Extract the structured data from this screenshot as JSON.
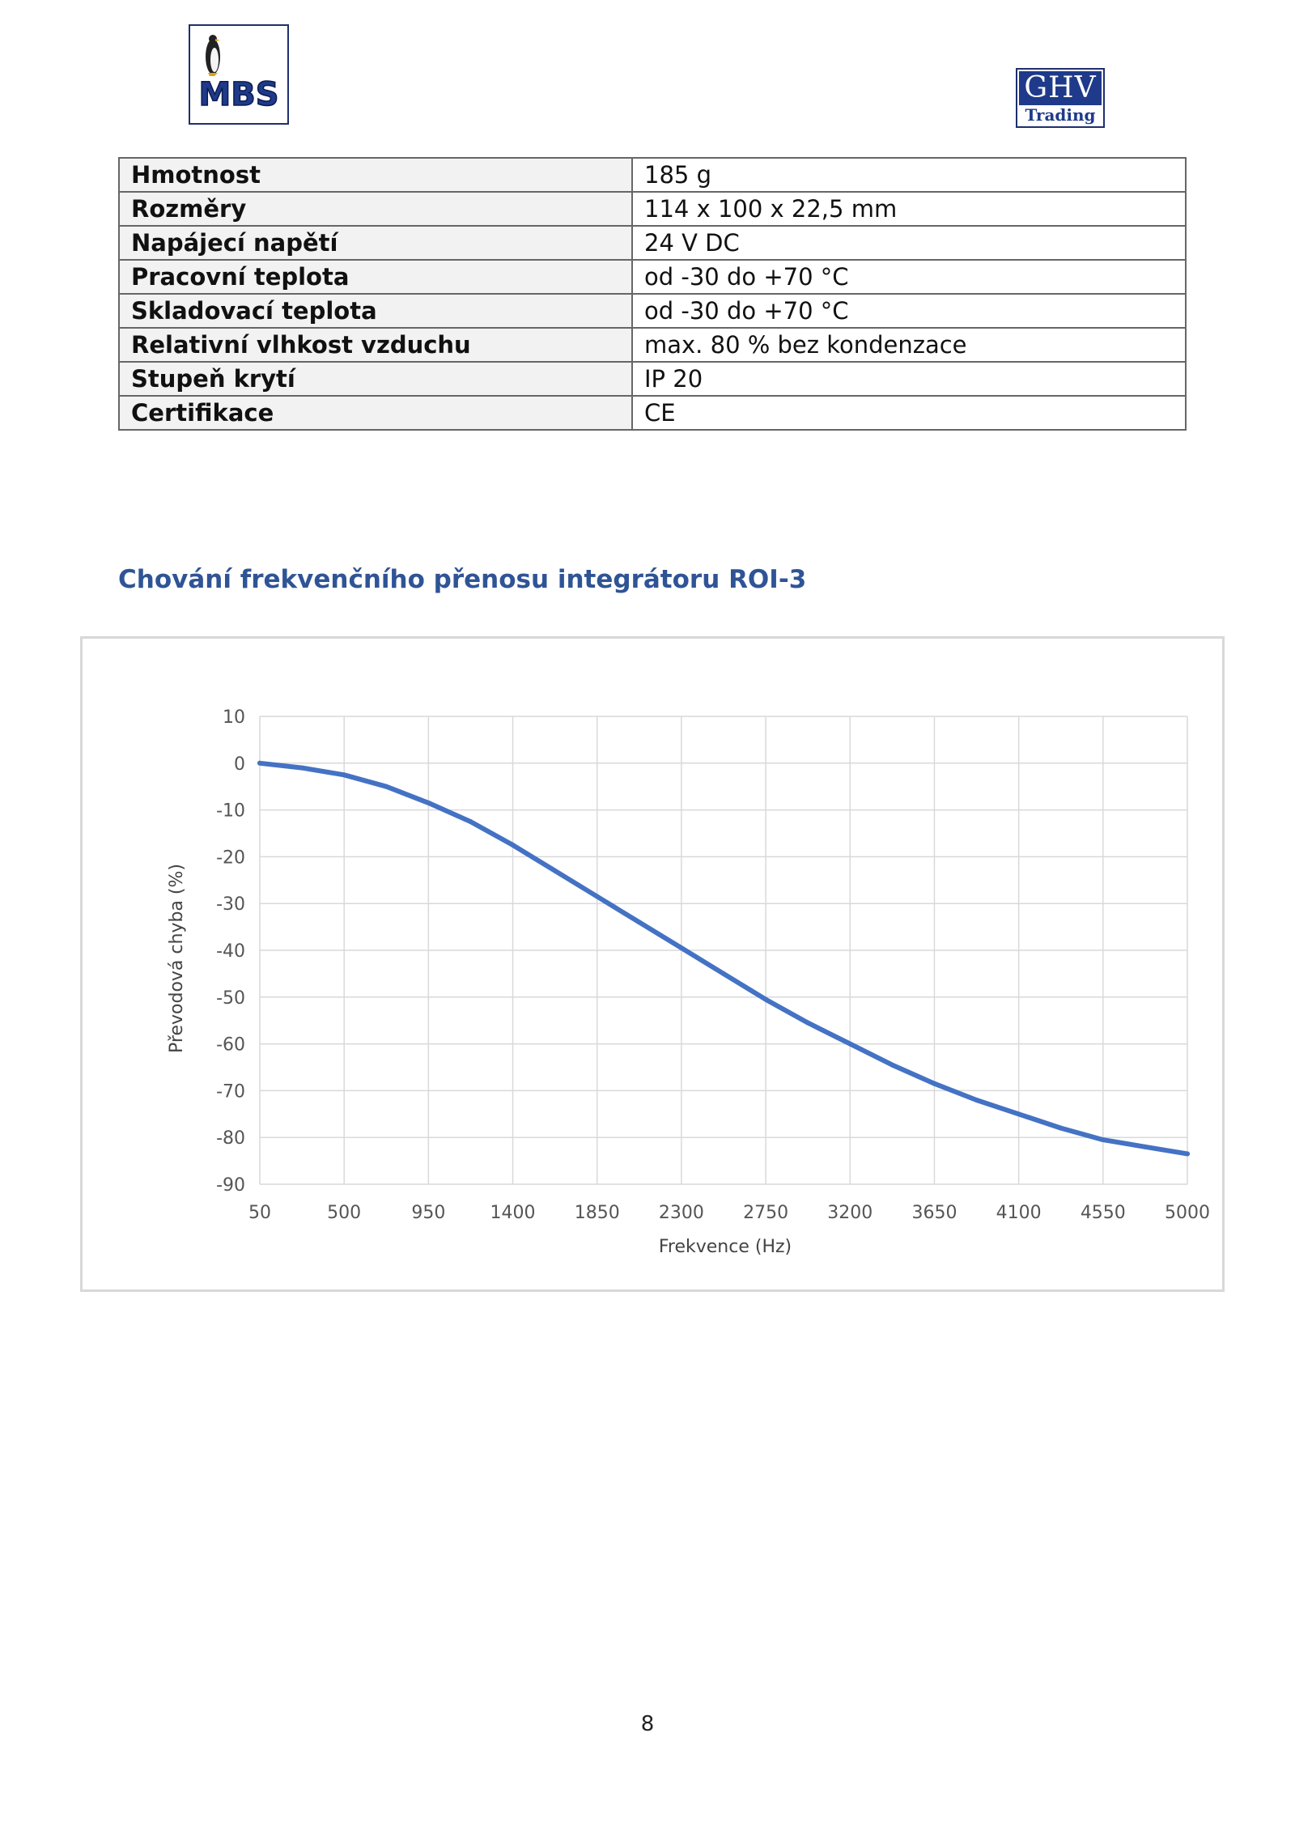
{
  "logos": {
    "mbs_text": "MBS",
    "ghv_top": "GHV",
    "ghv_bottom": "Trading"
  },
  "spec_table": [
    {
      "label": "Hmotnost",
      "value": "185 g"
    },
    {
      "label": "Rozměry",
      "value": "114 x 100 x 22,5 mm"
    },
    {
      "label": "Napájecí napětí",
      "value": "24 V DC"
    },
    {
      "label": "Pracovní teplota",
      "value": "od -30 do +70 °C"
    },
    {
      "label": "Skladovací teplota",
      "value": "od -30 do +70 °C"
    },
    {
      "label": "Relativní vlhkost vzduchu",
      "value": "max. 80 % bez kondenzace"
    },
    {
      "label": "Stupeň krytí",
      "value": "IP 20"
    },
    {
      "label": "Certifikace",
      "value": "CE"
    }
  ],
  "section_heading": "Chování frekvenčního přenosu integrátoru ROI-3",
  "chart_data": {
    "type": "line",
    "xlabel": "Frekvence (Hz)",
    "ylabel": "Převodová chyba (%)",
    "xlim": [
      50,
      5000
    ],
    "ylim": [
      -90,
      10
    ],
    "x_ticks": [
      50,
      500,
      950,
      1400,
      1850,
      2300,
      2750,
      3200,
      3650,
      4100,
      4550,
      5000
    ],
    "y_ticks": [
      10,
      0,
      -10,
      -20,
      -30,
      -40,
      -50,
      -60,
      -70,
      -80,
      -90
    ],
    "grid": true,
    "series": [
      {
        "color": "#4472c4",
        "x": [
          50,
          275,
          500,
          725,
          950,
          1175,
          1400,
          1625,
          1850,
          2075,
          2300,
          2525,
          2750,
          2975,
          3200,
          3425,
          3650,
          3875,
          4100,
          4325,
          4550,
          4775,
          5000
        ],
        "y": [
          0,
          -1,
          -2.5,
          -5,
          -8.5,
          -12.5,
          -17.5,
          -23,
          -28.5,
          -34,
          -39.5,
          -45,
          -50.5,
          -55.5,
          -60,
          -64.5,
          -68.5,
          -72,
          -75,
          -78,
          -80.5,
          -82,
          -83.5
        ]
      }
    ]
  },
  "page_number": "8"
}
